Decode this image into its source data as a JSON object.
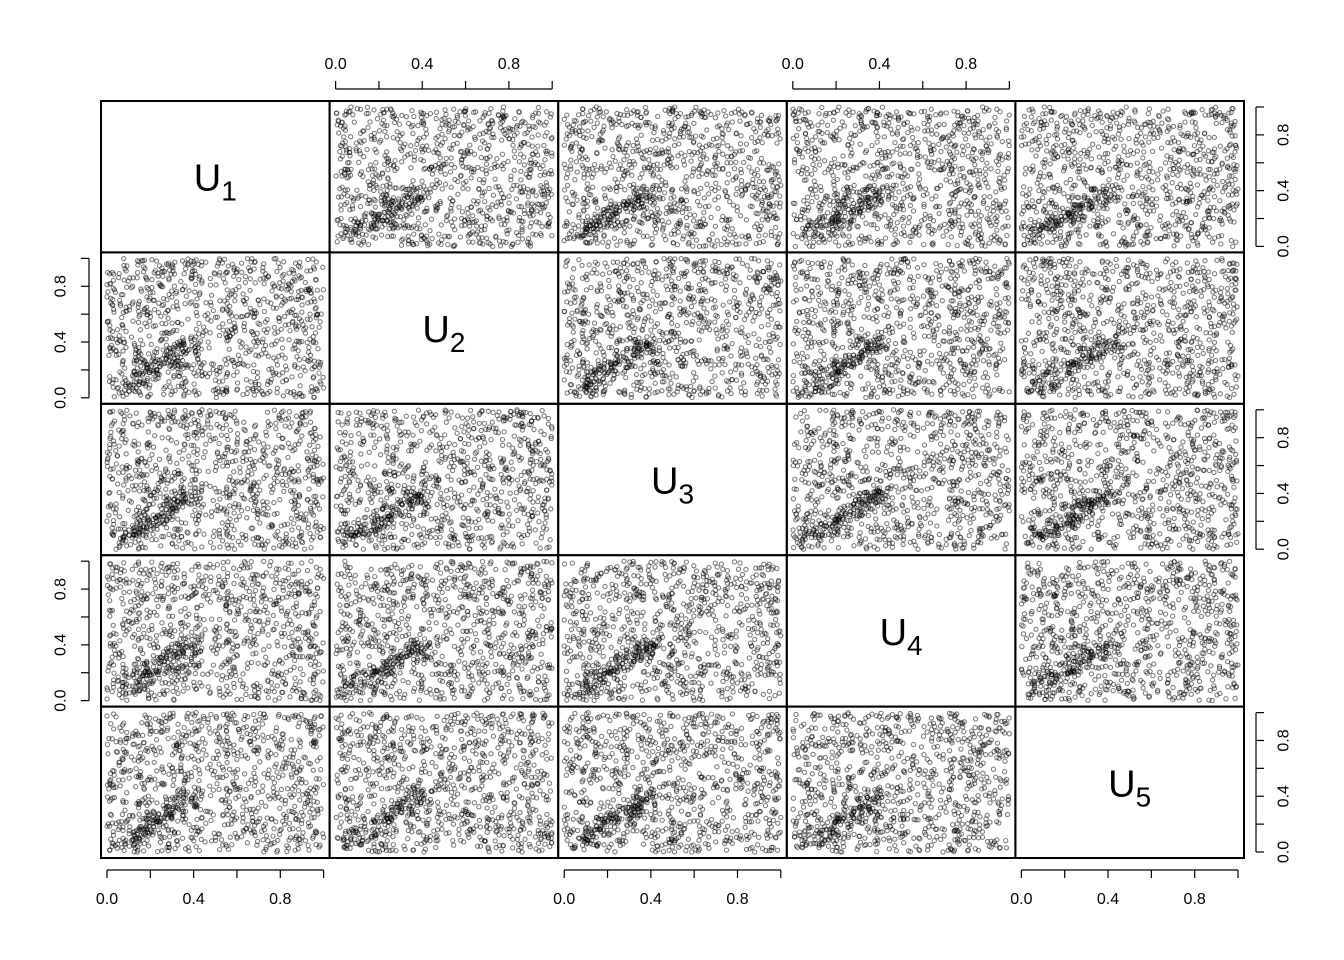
{
  "chart_data": {
    "type": "scatter",
    "kind": "pairs-matrix",
    "title": "",
    "variables": [
      {
        "name": "U",
        "sub": "1"
      },
      {
        "name": "U",
        "sub": "2"
      },
      {
        "name": "U",
        "sub": "3"
      },
      {
        "name": "U",
        "sub": "4"
      },
      {
        "name": "U",
        "sub": "5"
      }
    ],
    "axis_range": [
      0.0,
      1.0
    ],
    "ticks": [
      0.0,
      0.2,
      0.4,
      0.6,
      0.8,
      1.0
    ],
    "tick_labels": [
      "0.0",
      "0.4",
      "0.8"
    ],
    "label_ticks": [
      0.0,
      0.4,
      0.8
    ],
    "n_points_per_panel": 1000,
    "point_color": "#000000",
    "point_alpha": 0.5,
    "grid": false,
    "legend": "none",
    "axes_placement": {
      "top": [
        1,
        3
      ],
      "bottom": [
        0,
        2,
        4
      ],
      "left": [
        1,
        3
      ],
      "right": [
        0,
        2,
        4
      ]
    }
  }
}
